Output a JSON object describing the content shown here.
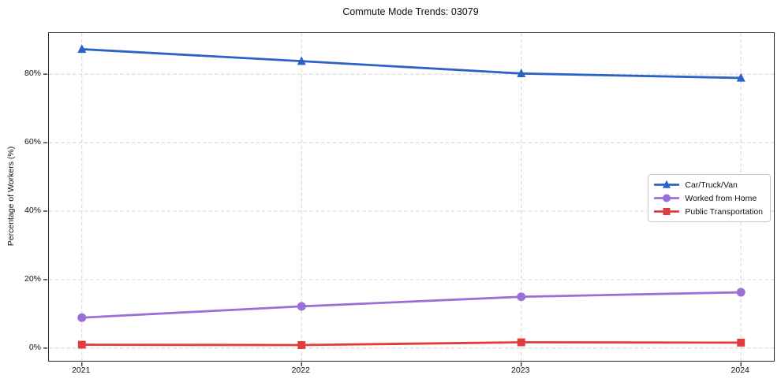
{
  "title": "Commute Mode Trends: 03079",
  "chart_data": {
    "type": "line",
    "title": "Commute Mode Trends: 03079",
    "xlabel": "",
    "ylabel": "Percentage of Workers (%)",
    "categories": [
      "2021",
      "2022",
      "2023",
      "2024"
    ],
    "series": [
      {
        "name": "Car/Truck/Van",
        "values": [
          87.3,
          83.8,
          80.2,
          78.9
        ],
        "color": "#2b62c5",
        "marker": "triangle"
      },
      {
        "name": "Worked from Home",
        "values": [
          8.9,
          12.2,
          15.0,
          16.3
        ],
        "color": "#9a70d6",
        "marker": "circle"
      },
      {
        "name": "Public Transportation",
        "values": [
          1.0,
          0.9,
          1.7,
          1.6
        ],
        "color": "#e23c3c",
        "marker": "square"
      }
    ],
    "yticks": [
      0,
      20,
      40,
      60,
      80
    ],
    "ytick_labels": [
      "0%",
      "20%",
      "40%",
      "60%",
      "80%"
    ],
    "ylim": [
      -3.7,
      92
    ],
    "x_margin_fraction": 0.15,
    "grid": true,
    "legend_position": "center-right",
    "colors": {
      "grid": "#d4d4d4",
      "spine": "#262626",
      "text": "#111111"
    }
  }
}
